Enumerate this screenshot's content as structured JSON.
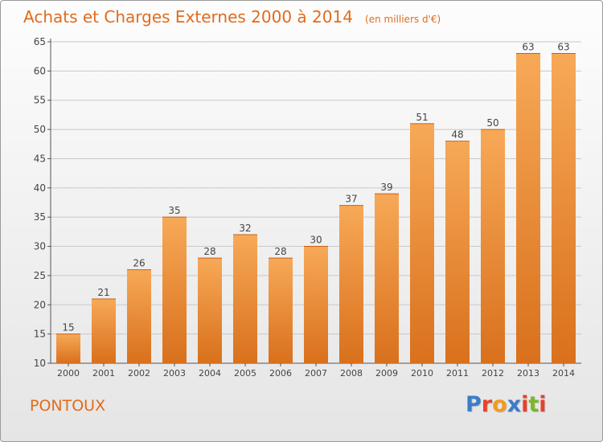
{
  "header": {
    "title": "Achats et Charges Externes 2000 à 2014",
    "subtitle": "(en milliers d'€)"
  },
  "footer": {
    "commune": "PONTOUX",
    "logo_text": "Proxiti",
    "logo_colors": [
      "#3a7dc9",
      "#e8412b",
      "#f29a1f",
      "#3a7dc9",
      "#e8412b",
      "#7ab827",
      "#e8412b"
    ]
  },
  "colors": {
    "bar_top": "#f7a957",
    "bar_bottom": "#d9701c",
    "accent": "#e26b1b",
    "grid": "#c8c8c8"
  },
  "chart_data": {
    "type": "bar",
    "categories": [
      "2000",
      "2001",
      "2002",
      "2003",
      "2004",
      "2005",
      "2006",
      "2007",
      "2008",
      "2009",
      "2010",
      "2011",
      "2012",
      "2013",
      "2014"
    ],
    "values": [
      15,
      21,
      26,
      35,
      28,
      32,
      28,
      30,
      37,
      39,
      51,
      48,
      50,
      63,
      63
    ],
    "title": "Achats et Charges Externes 2000 à 2014",
    "subtitle": "(en milliers d'€)",
    "xlabel": "",
    "ylabel": "",
    "ylim": [
      10,
      65
    ],
    "yticks": [
      10,
      15,
      20,
      25,
      30,
      35,
      40,
      45,
      50,
      55,
      60,
      65
    ],
    "grid": true,
    "legend": "none"
  }
}
